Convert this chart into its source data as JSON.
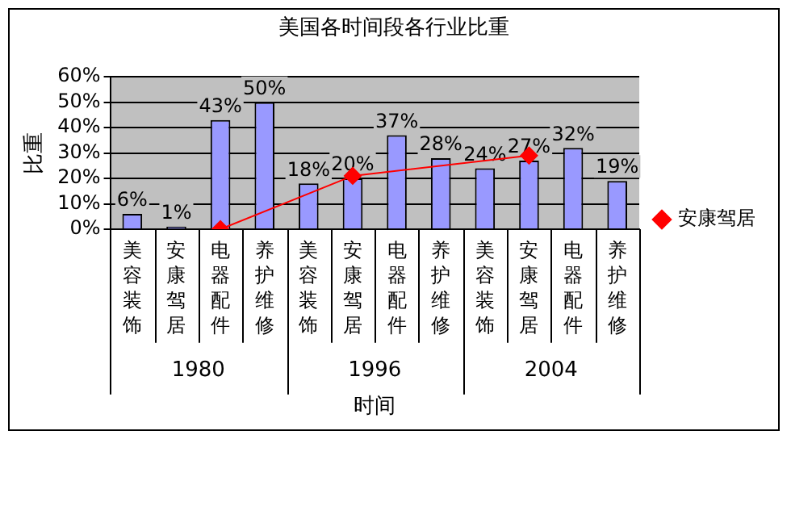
{
  "chart_data": {
    "type": "bar",
    "title": "美国各时间段各行业比重",
    "xlabel": "时间",
    "ylabel": "比重",
    "categories": [
      "美容装饰",
      "安康驾居",
      "电器配件",
      "养护维修",
      "美容装饰",
      "安康驾居",
      "电器配件",
      "养护维修",
      "美容装饰",
      "安康驾居",
      "电器配件",
      "养护维修"
    ],
    "annotations": [
      "1980",
      "1996",
      "2004"
    ],
    "series": [
      {
        "color": "#9999ff",
        "values": [
          6,
          1,
          43,
          50,
          18,
          20,
          37,
          28,
          24,
          27,
          32,
          19
        ],
        "value_labels": [
          "6%",
          "1%",
          "43%",
          "50%",
          "18%",
          "20%",
          "37%",
          "28%",
          "24%",
          "27%",
          "32%",
          "19%"
        ]
      },
      {
        "type": "line",
        "name": "安康驾居",
        "color": "#ff0000",
        "values": [
          null,
          null,
          0,
          null,
          null,
          21,
          null,
          null,
          null,
          29,
          null,
          null
        ]
      }
    ],
    "ylim": [
      0,
      60
    ],
    "yticks": [
      {
        "value": 0,
        "label": "0%"
      },
      {
        "value": 10,
        "label": "10%"
      },
      {
        "value": 20,
        "label": "20%"
      },
      {
        "value": 30,
        "label": "30%"
      },
      {
        "value": 40,
        "label": "40%"
      },
      {
        "value": 50,
        "label": "50%"
      },
      {
        "value": 60,
        "label": "60%"
      }
    ],
    "grid": "y",
    "legend": "right",
    "marker": "diamond",
    "line_style": "solid"
  }
}
